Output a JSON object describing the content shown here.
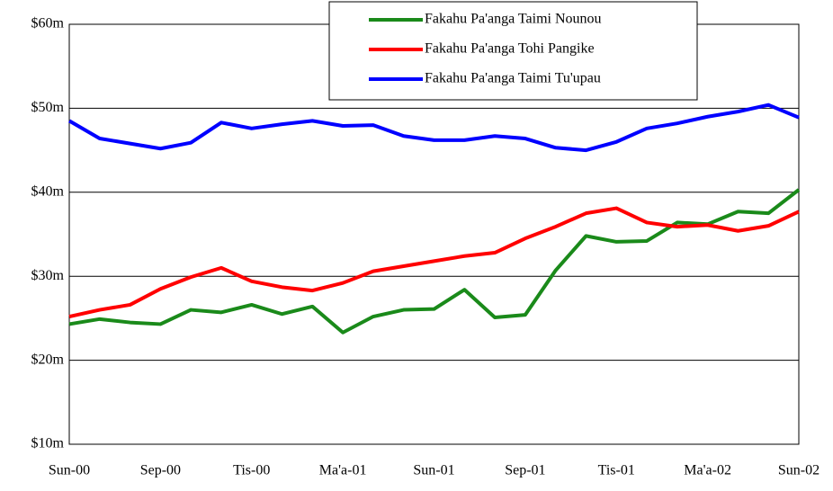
{
  "chart_data": {
    "type": "line",
    "categories": [
      "Sun-00",
      null,
      null,
      "Sep-00",
      null,
      null,
      "Tis-00",
      null,
      null,
      "Ma'a-01",
      null,
      null,
      "Sun-01",
      null,
      null,
      "Sep-01",
      null,
      null,
      "Tis-01",
      null,
      null,
      "Ma'a-02",
      null,
      null,
      "Sun-02"
    ],
    "series": [
      {
        "name": "Fakahu Pa'anga Taimi Nounou",
        "color": "#1a8a1a",
        "values": [
          24.3,
          24.9,
          24.5,
          24.3,
          26.0,
          25.7,
          26.6,
          25.5,
          26.4,
          23.3,
          25.2,
          26.0,
          26.1,
          28.4,
          25.1,
          25.4,
          30.7,
          34.8,
          34.1,
          34.2,
          36.4,
          36.2,
          37.7,
          37.5,
          40.3
        ]
      },
      {
        "name": "Fakahu Pa'anga Tohi Pangike",
        "color": "#ff0000",
        "values": [
          25.2,
          26.0,
          26.6,
          28.5,
          29.9,
          31.0,
          29.4,
          28.7,
          28.3,
          29.2,
          30.6,
          31.2,
          31.8,
          32.4,
          32.8,
          34.5,
          35.9,
          37.5,
          38.1,
          36.4,
          35.9,
          36.1,
          35.4,
          36.0,
          37.7
        ]
      },
      {
        "name": "Fakahu Pa'anga Taimi Tu'upau",
        "color": "#0000ff",
        "values": [
          48.5,
          46.4,
          45.8,
          45.2,
          45.9,
          48.3,
          47.6,
          48.1,
          48.5,
          47.9,
          48.0,
          46.7,
          46.2,
          46.2,
          46.7,
          46.4,
          45.3,
          45.0,
          46.0,
          47.6,
          48.2,
          49.0,
          49.6,
          50.4,
          48.9
        ]
      }
    ],
    "ylim": [
      10,
      60
    ],
    "yticks": [
      {
        "value": 10,
        "label": "$10m"
      },
      {
        "value": 20,
        "label": "$20m"
      },
      {
        "value": 30,
        "label": "$30m"
      },
      {
        "value": 40,
        "label": "$40m"
      },
      {
        "value": 50,
        "label": "$50m"
      },
      {
        "value": 60,
        "label": "$60m"
      }
    ],
    "grid": true,
    "legend": "top"
  }
}
